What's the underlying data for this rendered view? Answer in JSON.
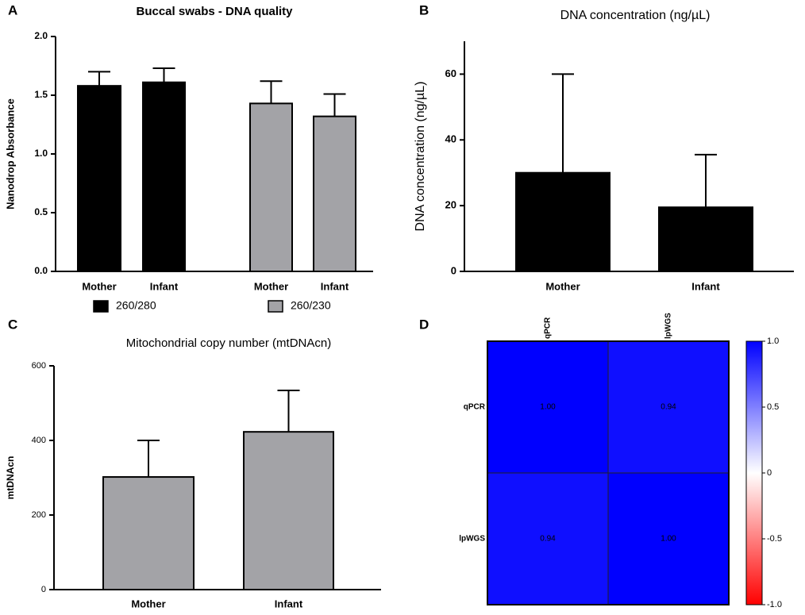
{
  "chart_data": [
    {
      "panel": "A",
      "type": "bar",
      "title": "Buccal swabs - DNA quality",
      "ylabel": "Nanodrop Absorbance",
      "categories": [
        "Mother",
        "Infant"
      ],
      "series": [
        {
          "name": "260/280",
          "color": "#000000",
          "values": [
            1.58,
            1.61
          ],
          "errors": [
            0.12,
            0.12
          ]
        },
        {
          "name": "260/230",
          "color": "#a3a3a7",
          "values": [
            1.43,
            1.32
          ],
          "errors": [
            0.19,
            0.19
          ]
        }
      ],
      "ylim": [
        0,
        2
      ],
      "yticks": [
        {
          "value": 0,
          "label": "0.0"
        },
        {
          "value": 0.5,
          "label": "0.5"
        },
        {
          "value": 1,
          "label": "1.0"
        },
        {
          "value": 1.5,
          "label": "1.5"
        },
        {
          "value": 2,
          "label": "2.0"
        }
      ],
      "legend": "bottom"
    },
    {
      "panel": "B",
      "type": "bar",
      "title": "DNA concentration (ng/µL)",
      "ylabel": "DNA concentration (ng/µL)",
      "categories": [
        "Mother",
        "Infant"
      ],
      "color": "#000000",
      "values": [
        30,
        19.5
      ],
      "errors": [
        30,
        16
      ],
      "ylim": [
        0,
        70
      ],
      "yticks": [
        0,
        20,
        40,
        60
      ]
    },
    {
      "panel": "C",
      "type": "bar",
      "title": "Mitochondrial copy number (mtDNAcn)",
      "ylabel": "mtDNAcn",
      "categories": [
        "Mother",
        "Infant"
      ],
      "color": "#a3a3a7",
      "values": [
        302,
        423
      ],
      "errors": [
        98,
        111
      ],
      "ylim": [
        0,
        600
      ],
      "yticks": [
        0,
        200,
        400,
        600
      ]
    },
    {
      "panel": "D",
      "type": "heatmap",
      "x": [
        "qPCR",
        "lpWGS"
      ],
      "y": [
        "qPCR",
        "lpWGS"
      ],
      "values": [
        [
          1,
          0.94
        ],
        [
          0.94,
          1
        ]
      ],
      "value_labels": [
        [
          "1.00",
          "0.94"
        ],
        [
          "0.94",
          "1.00"
        ]
      ],
      "cmap": [
        "#ff0000",
        "#ffffff",
        "#0000ff"
      ],
      "zlim": [
        -1,
        1
      ],
      "zticks": [
        {
          "value": 1,
          "label": "1.0"
        },
        0.5,
        0,
        -0.5,
        {
          "value": -1,
          "label": "-1.0"
        }
      ]
    }
  ]
}
